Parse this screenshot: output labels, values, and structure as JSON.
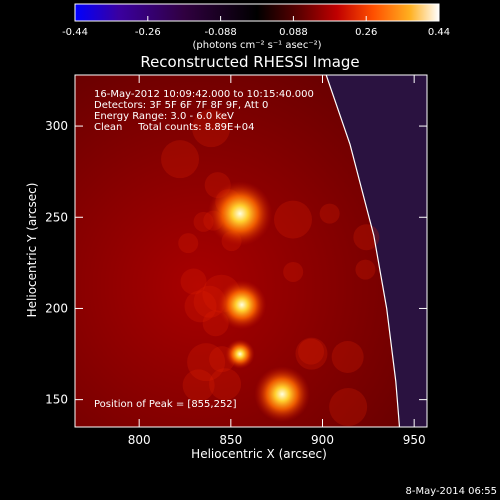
{
  "colorbar": {
    "ticks": [
      "-0.44",
      "-0.26",
      "-0.088",
      "0.088",
      "0.26",
      "0.44"
    ],
    "unit": "(photons cm⁻² s⁻¹ asec⁻²)",
    "range": [
      -0.44,
      0.44
    ],
    "colors": [
      "#0000ff",
      "#3a00a0",
      "#300040",
      "#000000",
      "#600000",
      "#c00000",
      "#ff5000",
      "#ffb020",
      "#ffffff"
    ]
  },
  "footer": {
    "timestamp": "8-May-2014 06:55"
  },
  "chart_data": {
    "type": "heatmap",
    "title": "Reconstructed RHESSI Image",
    "xlabel": "Heliocentric X (arcsec)",
    "ylabel": "Heliocentric Y (arcsec)",
    "xlim": [
      765,
      957
    ],
    "ylim": [
      135,
      328
    ],
    "xticks": [
      800,
      850,
      900,
      950
    ],
    "yticks": [
      150,
      200,
      250,
      300
    ],
    "annotations": [
      "16-May-2012 10:09:42.000 to 10:15:40.000",
      "Detectors: 3F 5F 6F 7F 8F 9F, Att 0",
      "Energy Range: 3.0 - 6.0 keV",
      "Clean     Total counts: 8.89E+04"
    ],
    "peak_label": "Position of Peak = [855,252]",
    "sources": [
      {
        "x": 855,
        "y": 252,
        "value": 0.44
      },
      {
        "x": 856,
        "y": 202,
        "value": 0.3
      },
      {
        "x": 878,
        "y": 153,
        "value": 0.36
      },
      {
        "x": 855,
        "y": 175,
        "value": 0.12
      }
    ],
    "limb": [
      [
        902,
        328
      ],
      [
        915,
        290
      ],
      [
        928,
        240
      ],
      [
        935,
        200
      ],
      [
        940,
        160
      ],
      [
        942,
        135
      ]
    ]
  }
}
